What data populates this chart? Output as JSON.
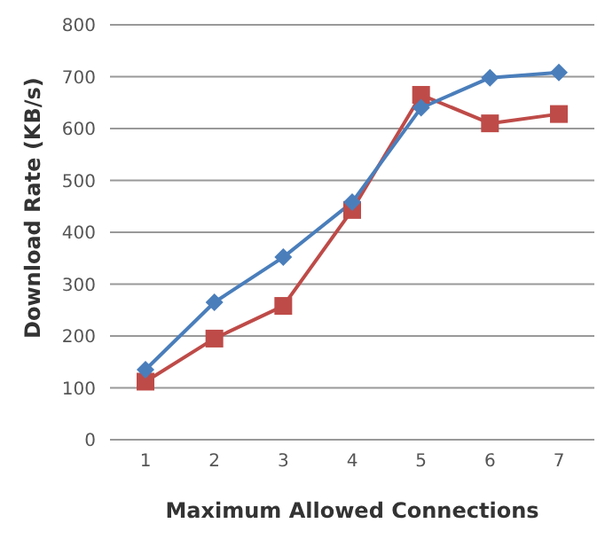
{
  "chart_data": {
    "type": "line",
    "xlabel": "Maximum Allowed Connections",
    "ylabel": "Download Rate (KB/s)",
    "categories": [
      "1",
      "2",
      "3",
      "4",
      "5",
      "6",
      "7"
    ],
    "series": [
      {
        "color": "#4a7ebb",
        "marker": "diamond",
        "values": [
          135,
          265,
          352,
          458,
          640,
          698,
          708
        ]
      },
      {
        "color": "#be4b48",
        "marker": "square",
        "values": [
          112,
          195,
          258,
          443,
          665,
          610,
          628
        ]
      }
    ],
    "ylim": [
      0,
      800
    ],
    "yticks": [
      0,
      100,
      200,
      300,
      400,
      500,
      600,
      700,
      800
    ],
    "grid": "y",
    "legend": false
  }
}
